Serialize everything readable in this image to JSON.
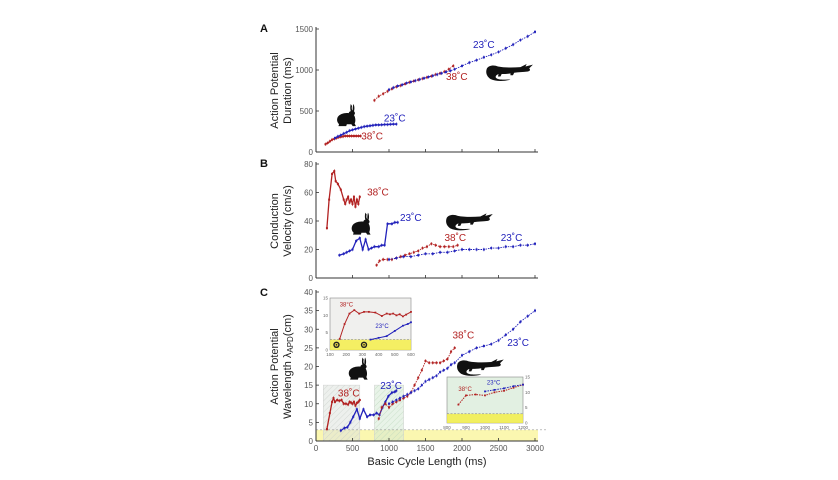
{
  "chart_data": [
    {
      "panel": "A",
      "type": "line",
      "ylabel": [
        "Action Potential",
        "Duration (ms)"
      ],
      "xlabel": "",
      "xlim": [
        0,
        3000
      ],
      "ylim": [
        0,
        1500
      ],
      "yticks": [
        "0",
        "500",
        "1000",
        "1500"
      ],
      "yticks_values": [
        0,
        500,
        1000,
        1500
      ],
      "xticks_values": [
        0,
        500,
        1000,
        1500,
        2000,
        2500,
        3000
      ],
      "series": [
        {
          "name": "Rabbit 38°C",
          "color": "#b22222",
          "x": [
            130,
            160,
            190,
            220,
            250,
            280,
            310,
            340,
            370,
            400,
            430,
            460,
            490,
            520,
            550,
            580,
            610
          ],
          "y": [
            95,
            110,
            130,
            150,
            160,
            170,
            180,
            185,
            190,
            195,
            195,
            195,
            195,
            195,
            195,
            195,
            195
          ]
        },
        {
          "name": "Rabbit 23°C",
          "color": "#2222bb",
          "x": [
            260,
            300,
            340,
            380,
            420,
            460,
            500,
            540,
            580,
            620,
            660,
            700,
            740,
            780,
            820,
            860,
            900,
            940,
            980,
            1020,
            1060,
            1100
          ],
          "y": [
            170,
            190,
            205,
            225,
            240,
            260,
            270,
            280,
            290,
            300,
            310,
            315,
            320,
            325,
            330,
            330,
            332,
            335,
            335,
            338,
            340,
            340
          ]
        },
        {
          "name": "Crocodile 38°C",
          "color": "#b22222",
          "x": [
            800,
            860,
            920,
            980,
            1040,
            1100,
            1160,
            1220,
            1280,
            1340,
            1400,
            1460,
            1520,
            1580,
            1640,
            1700,
            1760,
            1820,
            1880
          ],
          "y": [
            630,
            680,
            710,
            740,
            770,
            795,
            810,
            830,
            850,
            865,
            880,
            895,
            910,
            925,
            945,
            960,
            980,
            1010,
            1050
          ]
        },
        {
          "name": "Crocodile 23°C",
          "color": "#2222bb",
          "x": [
            1000,
            1060,
            1120,
            1180,
            1240,
            1300,
            1360,
            1420,
            1480,
            1540,
            1600,
            1660,
            1720,
            1780,
            1840,
            1900,
            2000,
            2100,
            2200,
            2300,
            2400,
            2500,
            2600,
            2700,
            2800,
            2900,
            3000
          ],
          "y": [
            760,
            785,
            805,
            820,
            840,
            855,
            870,
            885,
            900,
            915,
            930,
            945,
            960,
            975,
            990,
            1010,
            1050,
            1090,
            1120,
            1155,
            1185,
            1220,
            1265,
            1310,
            1365,
            1410,
            1465
          ]
        }
      ],
      "annotations": [
        {
          "text": "23˚C",
          "x": 2150,
          "y": 1270,
          "color": "#2222bb"
        },
        {
          "text": "38˚C",
          "x": 1780,
          "y": 880,
          "color": "#b22222"
        },
        {
          "text": "23˚C",
          "x": 930,
          "y": 370,
          "color": "#2222bb"
        },
        {
          "text": "38˚C",
          "x": 620,
          "y": 150,
          "color": "#b22222"
        }
      ],
      "silhouettes": [
        {
          "animal": "rabbit",
          "x": 400,
          "y": 430
        },
        {
          "animal": "crocodile",
          "x": 2650,
          "y": 980
        }
      ]
    },
    {
      "panel": "B",
      "type": "line",
      "ylabel": [
        "Conduction",
        "Velocity (cm/s)"
      ],
      "xlabel": "",
      "xlim": [
        0,
        3000
      ],
      "ylim": [
        0,
        80
      ],
      "yticks": [
        "0",
        "20",
        "40",
        "60",
        "80"
      ],
      "yticks_values": [
        0,
        20,
        40,
        60,
        80
      ],
      "xticks_values": [
        0,
        500,
        1000,
        1500,
        2000,
        2500,
        3000
      ],
      "series": [
        {
          "name": "Rabbit 38°C",
          "color": "#b22222",
          "x": [
            150,
            180,
            220,
            250,
            270,
            300,
            340,
            380,
            400,
            420,
            440,
            460,
            480,
            500,
            520,
            540,
            560,
            580,
            600
          ],
          "y": [
            35,
            55,
            73,
            75,
            68,
            66,
            62,
            55,
            52,
            55,
            57,
            53,
            55,
            52,
            57,
            50,
            55,
            52,
            57
          ]
        },
        {
          "name": "Rabbit 23°C",
          "color": "#2222bb",
          "x": [
            320,
            380,
            420,
            460,
            500,
            550,
            600,
            640,
            680,
            720,
            760,
            800,
            860,
            900,
            940,
            980,
            1040,
            1080,
            1120
          ],
          "y": [
            16,
            17,
            18,
            19,
            20,
            26,
            28,
            20,
            27,
            20,
            21,
            22,
            22,
            23,
            23,
            38,
            38,
            39,
            39
          ]
        },
        {
          "name": "Crocodile 38°C",
          "color": "#b22222",
          "x": [
            830,
            870,
            920,
            980,
            1040,
            1100,
            1160,
            1220,
            1280,
            1340,
            1400,
            1460,
            1520,
            1580,
            1640,
            1700,
            1760,
            1820,
            1880,
            1940
          ],
          "y": [
            9,
            12,
            13,
            13,
            13,
            14,
            15,
            16,
            17,
            18,
            19,
            21,
            22,
            24,
            23,
            22,
            22,
            22,
            22,
            23
          ]
        },
        {
          "name": "Crocodile 23°C",
          "color": "#2222bb",
          "x": [
            1000,
            1100,
            1200,
            1300,
            1400,
            1500,
            1600,
            1700,
            1800,
            1900,
            2000,
            2100,
            2200,
            2300,
            2400,
            2500,
            2600,
            2700,
            2800,
            2900,
            3000
          ],
          "y": [
            13,
            14,
            15,
            15,
            16,
            17,
            17,
            18,
            18,
            19,
            20,
            20,
            20,
            20,
            21,
            21,
            22,
            22,
            23,
            23,
            24
          ]
        }
      ],
      "annotations": [
        {
          "text": "38˚C",
          "x": 700,
          "y": 58,
          "color": "#b22222"
        },
        {
          "text": "23˚C",
          "x": 1150,
          "y": 40,
          "color": "#2222bb"
        },
        {
          "text": "38˚C",
          "x": 1760,
          "y": 26,
          "color": "#b22222"
        },
        {
          "text": "23˚C",
          "x": 2530,
          "y": 26,
          "color": "#2222bb"
        }
      ],
      "silhouettes": [
        {
          "animal": "rabbit",
          "x": 600,
          "y": 37
        },
        {
          "animal": "crocodile",
          "x": 2100,
          "y": 40
        }
      ]
    },
    {
      "panel": "C",
      "type": "line",
      "ylabel": [
        "Action Potential",
        "Wavelength λ",
        "APD",
        "(cm)"
      ],
      "xlabel": "Basic Cycle Length (ms)",
      "xlim": [
        0,
        3000
      ],
      "ylim": [
        0,
        40
      ],
      "yticks": [
        "0",
        "5",
        "10",
        "15",
        "20",
        "25",
        "30",
        "35",
        "40"
      ],
      "yticks_values": [
        0,
        5,
        10,
        15,
        20,
        25,
        30,
        35,
        40
      ],
      "xticks": [
        "0",
        "500",
        "1000",
        "1500",
        "2000",
        "2500",
        "3000"
      ],
      "xticks_values": [
        0,
        500,
        1000,
        1500,
        2000,
        2500,
        3000
      ],
      "series": [
        {
          "name": "Rabbit 38°C",
          "color": "#b22222",
          "x": [
            150,
            190,
            220,
            240,
            260,
            290,
            320,
            350,
            380,
            410,
            440,
            460,
            480,
            500,
            520,
            540,
            560,
            580,
            600
          ],
          "y": [
            3.2,
            7.5,
            10.5,
            11.5,
            10.5,
            11,
            10.8,
            11,
            10,
            10,
            9.8,
            10.5,
            10.3,
            10,
            10.5,
            9.5,
            10.2,
            10.5,
            11
          ]
        },
        {
          "name": "Rabbit 23°C",
          "color": "#2222bb",
          "x": [
            340,
            390,
            430,
            470,
            510,
            560,
            600,
            650,
            700,
            740,
            790,
            830,
            870,
            910,
            950,
            990,
            1040,
            1080,
            1100
          ],
          "y": [
            2.8,
            3.5,
            3.7,
            5,
            6.5,
            8.5,
            6,
            8.5,
            6.5,
            7,
            7,
            7.5,
            7,
            9,
            10.5,
            12,
            13,
            13.2,
            13.5
          ]
        },
        {
          "name": "Crocodile 38°C",
          "color": "#b22222",
          "x": [
            860,
            900,
            950,
            1000,
            1050,
            1100,
            1150,
            1200,
            1250,
            1300,
            1350,
            1400,
            1450,
            1500,
            1550,
            1600,
            1650,
            1700,
            1750,
            1800,
            1850,
            1900
          ],
          "y": [
            6,
            9,
            10,
            9,
            10,
            10.5,
            11,
            11.5,
            12,
            13,
            15,
            17,
            19,
            21.5,
            21,
            21,
            21,
            21,
            21.5,
            22,
            24,
            25
          ]
        },
        {
          "name": "Crocodile 23°C",
          "color": "#2222bb",
          "x": [
            1000,
            1050,
            1100,
            1150,
            1200,
            1250,
            1300,
            1350,
            1400,
            1450,
            1500,
            1550,
            1600,
            1650,
            1700,
            1750,
            1800,
            1850,
            1900,
            2000,
            2100,
            2200,
            2300,
            2400,
            2500,
            2600,
            2700,
            2800,
            2900,
            3000
          ],
          "y": [
            10,
            10.5,
            11,
            11.5,
            12,
            12.5,
            13,
            13.5,
            14,
            15,
            16,
            16.5,
            17,
            17.5,
            18.5,
            19,
            19.5,
            20.5,
            21,
            23,
            24,
            25,
            25.5,
            26,
            27,
            28.5,
            30,
            32,
            33.5,
            35
          ]
        }
      ],
      "shaded_regions": [
        {
          "x0": 100,
          "x1": 600,
          "y0": 0,
          "y1": 15,
          "fill": "#dfe3df"
        },
        {
          "x0": 800,
          "x1": 1200,
          "y0": 0,
          "y1": 15,
          "fill": "#d6ead6"
        }
      ],
      "threshold_band": {
        "y0": 0,
        "y1": 3,
        "fill": "#fbf7b0",
        "dashed_line_at": 3
      },
      "annotations": [
        {
          "text": "38˚C",
          "x": 1870,
          "y": 27.5,
          "color": "#b22222"
        },
        {
          "text": "23˚C",
          "x": 2620,
          "y": 25.5,
          "color": "#2222bb"
        },
        {
          "text": "38˚C",
          "x": 300,
          "y": 12,
          "color": "#b22222"
        },
        {
          "text": "23˚C",
          "x": 880,
          "y": 14,
          "color": "#2222bb"
        }
      ],
      "silhouettes": [
        {
          "animal": "rabbit",
          "x": 560,
          "y": 19
        },
        {
          "animal": "crocodile",
          "x": 2250,
          "y": 20
        }
      ],
      "insets": [
        {
          "name": "rabbit-inset",
          "xlim": [
            100,
            600
          ],
          "ylim": [
            0,
            15
          ],
          "xticks": [
            "100",
            "200",
            "300",
            "400",
            "500",
            "600"
          ],
          "xticks_values": [
            100,
            200,
            300,
            400,
            500,
            600
          ],
          "yticks": [
            "0",
            "5",
            "10",
            "15"
          ],
          "yticks_values": [
            0,
            5,
            10,
            15
          ],
          "bg": "#f0f0ee",
          "threshold": 3,
          "series": [
            {
              "name": "38°C",
              "color": "#b22222",
              "x": [
                160,
                190,
                220,
                250,
                280,
                310,
                340,
                380,
                420,
                450,
                470,
                490,
                510,
                530,
                550,
                570,
                600
              ],
              "y": [
                3.2,
                7.5,
                10.5,
                11.5,
                10.5,
                11,
                11,
                10.8,
                9.8,
                10.5,
                10.3,
                10.5,
                10,
                10.3,
                9.7,
                10.2,
                11
              ]
            },
            {
              "name": "23°C",
              "color": "#2222bb",
              "x": [
                350,
                400,
                450,
                500,
                550,
                580,
                600
              ],
              "y": [
                3,
                3.5,
                4,
                5.5,
                7,
                7.5,
                8
              ]
            }
          ],
          "annotations": [
            {
              "text": "38°C",
              "x": 160,
              "y": 12.5,
              "color": "#b22222"
            },
            {
              "text": "23°C",
              "x": 380,
              "y": 6.3,
              "color": "#2222bb"
            }
          ],
          "markers": [
            {
              "x": 140,
              "y": 1.5
            },
            {
              "x": 310,
              "y": 1.5
            }
          ]
        },
        {
          "name": "crocodile-inset",
          "xlim": [
            800,
            1200
          ],
          "ylim": [
            0,
            15
          ],
          "xticks": [
            "800",
            "900",
            "1000",
            "1100",
            "1200"
          ],
          "xticks_values": [
            800,
            900,
            1000,
            1100,
            1200
          ],
          "yticks": [
            "0",
            "5",
            "10",
            "15"
          ],
          "yticks_values": [
            0,
            5,
            10,
            15
          ],
          "bg": "#e2f0e2",
          "threshold": 3,
          "series": [
            {
              "name": "38°C",
              "color": "#b22222",
              "x": [
                860,
                900,
                950,
                1000,
                1050,
                1100,
                1150,
                1200
              ],
              "y": [
                6,
                9,
                9.3,
                9,
                10,
                10.5,
                11.5,
                12.5
              ]
            },
            {
              "name": "23°C",
              "color": "#2222bb",
              "x": [
                1000,
                1050,
                1100,
                1150,
                1200
              ],
              "y": [
                10.3,
                10.8,
                11.3,
                12,
                12.5
              ]
            }
          ],
          "annotations": [
            {
              "text": "38°C",
              "x": 860,
              "y": 10.5,
              "color": "#b22222"
            },
            {
              "text": "23°C",
              "x": 1010,
              "y": 12.5,
              "color": "#2222bb"
            }
          ]
        }
      ]
    }
  ]
}
